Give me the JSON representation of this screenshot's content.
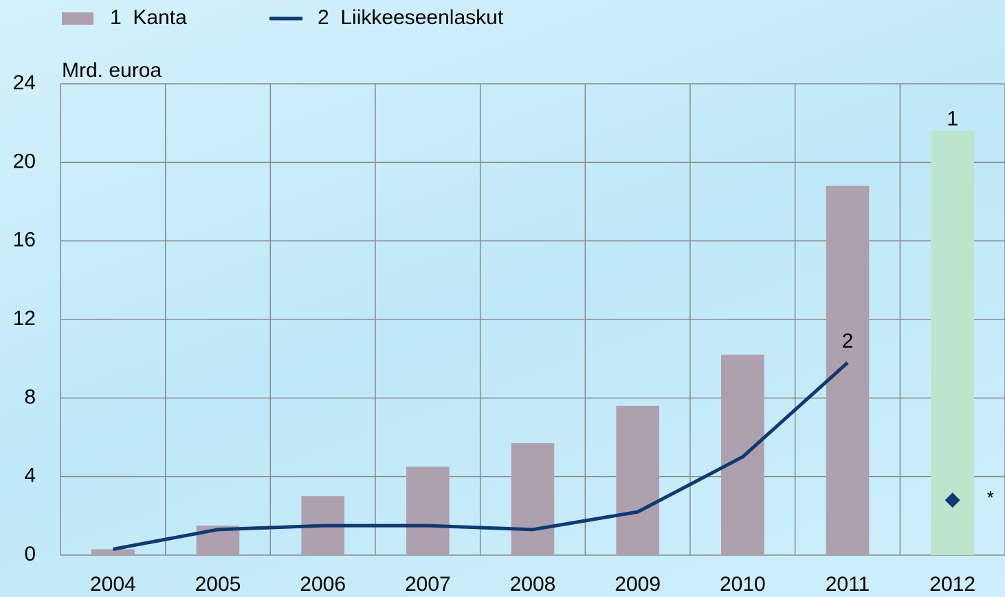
{
  "chart_data": {
    "type": "bar-line",
    "axis_label": "Mrd. euroa",
    "categories": [
      "2004",
      "2005",
      "2006",
      "2007",
      "2008",
      "2009",
      "2010",
      "2011",
      "2012"
    ],
    "series": [
      {
        "name": "1  Kanta",
        "type": "bar",
        "color": "#afa0ad",
        "colors": [
          "#afa0ad",
          "#afa0ad",
          "#afa0ad",
          "#afa0ad",
          "#afa0ad",
          "#afa0ad",
          "#afa0ad",
          "#afa0ad",
          "#bde5cc"
        ],
        "values": [
          0.3,
          1.5,
          3.0,
          4.5,
          5.7,
          7.6,
          10.2,
          18.8,
          21.6
        ]
      },
      {
        "name": "2  Liikkeeseenlaskut",
        "type": "line",
        "color": "#0e3a73",
        "values": [
          0.3,
          1.3,
          1.5,
          1.5,
          1.3,
          2.2,
          5.0,
          9.8,
          null
        ]
      }
    ],
    "series_labels": [
      "1",
      "2"
    ],
    "points": {
      "color": "#0e3a73",
      "label": "*",
      "values": [
        null,
        null,
        null,
        null,
        null,
        null,
        null,
        null,
        2.8
      ]
    },
    "ylim": [
      0,
      24
    ],
    "yticks": [
      0,
      4,
      8,
      12,
      16,
      20,
      24
    ],
    "grid": true
  }
}
